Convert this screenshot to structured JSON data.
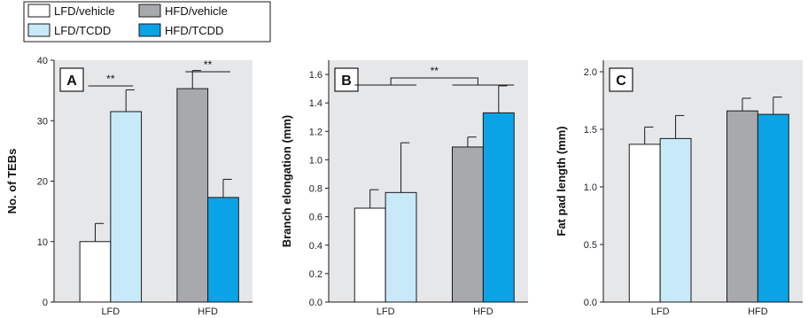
{
  "legend": {
    "items": [
      {
        "label": "LFD/vehicle",
        "color": "#ffffff"
      },
      {
        "label": "HFD/vehicle",
        "color": "#a7a9ac"
      },
      {
        "label": "LFD/TCDD",
        "color": "#c8e9f8"
      },
      {
        "label": "HFD/TCDD",
        "color": "#0aa3e6"
      }
    ]
  },
  "colors": {
    "plot_bg": "#e6e7e8",
    "bar_outline": "#1a1a1a",
    "text": "#111111"
  },
  "chart_data": [
    {
      "type": "bar",
      "panel": "A",
      "title": "",
      "xlabel": "",
      "ylabel": "No. of TEBs",
      "categories": [
        "LFD",
        "HFD"
      ],
      "ylim": [
        0,
        40
      ],
      "yticks": [
        0,
        10,
        20,
        30,
        40
      ],
      "ytick_labels": [
        "0",
        "10",
        "20",
        "30",
        "40"
      ],
      "grid": false,
      "bars": [
        {
          "group": "LFD",
          "series": "LFD/vehicle",
          "value": 10.0,
          "error": 3.0
        },
        {
          "group": "LFD",
          "series": "LFD/TCDD",
          "value": 31.5,
          "error": 3.6
        },
        {
          "group": "HFD",
          "series": "HFD/vehicle",
          "value": 35.3,
          "error": 3.0
        },
        {
          "group": "HFD",
          "series": "HFD/TCDD",
          "value": 17.3,
          "error": 3.0
        }
      ],
      "annotations": [
        {
          "text": "**",
          "between": [
            "LFD/vehicle",
            "LFD/TCDD"
          ]
        },
        {
          "text": "**",
          "between": [
            "HFD/vehicle",
            "HFD/TCDD"
          ]
        }
      ]
    },
    {
      "type": "bar",
      "panel": "B",
      "title": "",
      "xlabel": "",
      "ylabel": "Branch elongation (mm)",
      "categories": [
        "LFD",
        "HFD"
      ],
      "ylim": [
        0,
        1.7
      ],
      "yticks": [
        0,
        0.2,
        0.4,
        0.6,
        0.8,
        1.0,
        1.2,
        1.4,
        1.6
      ],
      "ytick_labels": [
        "0.0",
        "0.2",
        "0.4",
        "0.6",
        "0.8",
        "1.0",
        "1.2",
        "1.4",
        "1.6"
      ],
      "grid": false,
      "bars": [
        {
          "group": "LFD",
          "series": "LFD/vehicle",
          "value": 0.66,
          "error": 0.13
        },
        {
          "group": "LFD",
          "series": "LFD/TCDD",
          "value": 0.77,
          "error": 0.35
        },
        {
          "group": "HFD",
          "series": "HFD/vehicle",
          "value": 1.09,
          "error": 0.07
        },
        {
          "group": "HFD",
          "series": "HFD/TCDD",
          "value": 1.33,
          "error": 0.19
        }
      ],
      "annotations": [
        {
          "text": "**",
          "between": [
            "LFD",
            "HFD"
          ]
        }
      ]
    },
    {
      "type": "bar",
      "panel": "C",
      "title": "",
      "xlabel": "",
      "ylabel": "Fat pad length (mm)",
      "categories": [
        "LFD",
        "HFD"
      ],
      "ylim": [
        0,
        2.1
      ],
      "yticks": [
        0,
        0.5,
        1.0,
        1.5,
        2.0
      ],
      "ytick_labels": [
        "0.0",
        "0.5",
        "1.0",
        "1.5",
        "2.0"
      ],
      "grid": false,
      "bars": [
        {
          "group": "LFD",
          "series": "LFD/vehicle",
          "value": 1.37,
          "error": 0.15
        },
        {
          "group": "LFD",
          "series": "LFD/TCDD",
          "value": 1.42,
          "error": 0.2
        },
        {
          "group": "HFD",
          "series": "HFD/vehicle",
          "value": 1.66,
          "error": 0.11
        },
        {
          "group": "HFD",
          "series": "HFD/TCDD",
          "value": 1.63,
          "error": 0.15
        }
      ],
      "annotations": []
    }
  ]
}
